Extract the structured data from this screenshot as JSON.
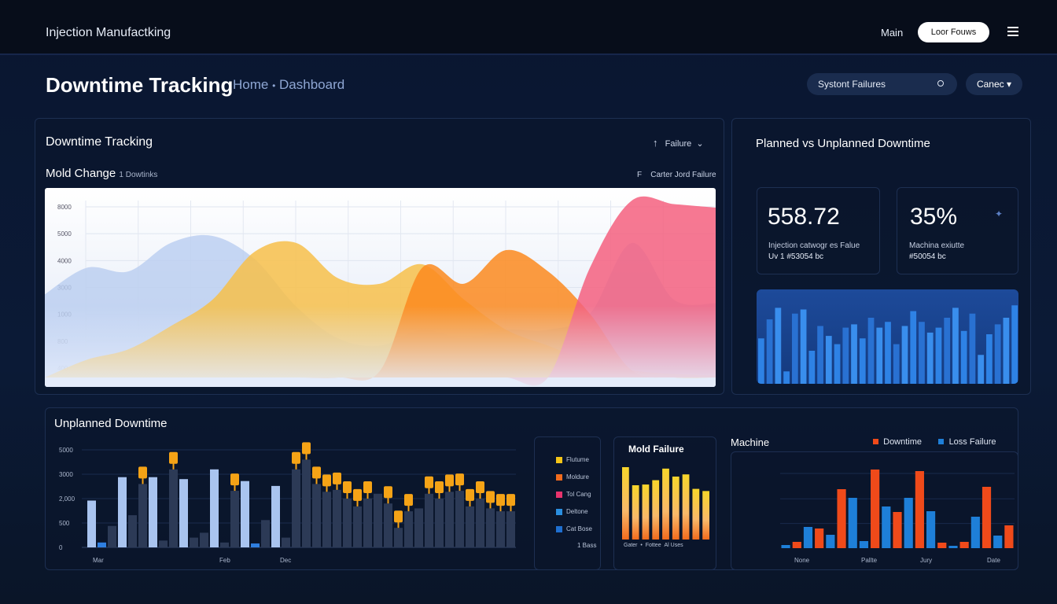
{
  "topbar": {
    "app_title": "Injection Manufactking",
    "main_link": "Main",
    "login_button": "Loor Fouws",
    "menu_icon": "hamburger-icon"
  },
  "header": {
    "page_title": "Downtime Tracking",
    "breadcrumb_home": "Home",
    "breadcrumb_sep": "•",
    "breadcrumb_current": "Dashboard",
    "search_value": "Systont Failures",
    "search_icon": "search-icon",
    "cancel_label": "Canec"
  },
  "tracking_panel": {
    "title": "Downtime Tracking",
    "sort_icon": "arrow-up-icon",
    "filter_label": "Failure",
    "subtitle": "Mold Change",
    "subtitle_note": "1 Dowtinks",
    "legend_marker": "F",
    "legend_label": "Carter Jord Failure"
  },
  "planned_panel": {
    "title": "Planned vs Unplanned Downtime",
    "kpis": [
      {
        "value": "558.72",
        "label": "Injection catwogr es Falue",
        "sub": "Uv 1 #53054 bc"
      },
      {
        "value": "35%",
        "label": "Machina exiutte",
        "sub": "#50054 bc",
        "icon": "sparkle-icon"
      }
    ],
    "bar_values": [
      55,
      78,
      92,
      15,
      85,
      90,
      40,
      70,
      58,
      48,
      68,
      72,
      55,
      80,
      68,
      75,
      48,
      70,
      88,
      75,
      62,
      68,
      80,
      92,
      64,
      85,
      35,
      60,
      72,
      80,
      95
    ]
  },
  "unplanned_panel": {
    "title": "Unplanned Downtime"
  },
  "legend_panel": {
    "items": [
      {
        "label": "Flutume",
        "color": "#f5c518"
      },
      {
        "label": "Moldure",
        "color": "#f26b1d"
      },
      {
        "label": "Tol Cang",
        "color": "#e8336d"
      },
      {
        "label": "Deltone",
        "color": "#2a8fe0"
      },
      {
        "label": "Cat Bose",
        "color": "#1f6fd0"
      }
    ],
    "footer": "1 Bass"
  },
  "mold_panel": {
    "title": "Mold Failure",
    "x_labels": [
      "Gater",
      "•",
      "Fottee",
      "Al Uses"
    ]
  },
  "machine_panel": {
    "title": "Machine",
    "legend": [
      {
        "label": "Downtime",
        "color": "#f04a1a"
      },
      {
        "label": "Loss Failure",
        "color": "#1e7fd8"
      }
    ]
  },
  "chart_data": [
    {
      "type": "area",
      "title": "Mold Change",
      "y_tick_labels": [
        "8000",
        "5000",
        "4000",
        "3000",
        "1000",
        "800",
        "400"
      ],
      "ylim": [
        0,
        100
      ],
      "grid": true,
      "series": [
        {
          "name": "blue",
          "color": "#b9cdf0",
          "values": [
            47,
            62,
            60,
            76,
            80,
            67,
            40,
            22,
            18,
            27,
            22,
            27,
            27,
            36,
            76,
            44,
            42
          ]
        },
        {
          "name": "yellow",
          "color": "#f7c04a",
          "values": [
            0,
            10,
            16,
            29,
            44,
            71,
            76,
            56,
            53,
            64,
            44,
            27,
            18,
            9,
            4,
            2,
            1
          ]
        },
        {
          "name": "orange",
          "color": "#fb8a1e",
          "values": [
            0,
            0,
            0,
            0,
            0,
            0,
            0,
            0,
            4,
            62,
            53,
            72,
            60,
            36,
            4,
            0,
            0
          ]
        },
        {
          "name": "pink",
          "color": "#f5607f",
          "values": [
            0,
            0,
            0,
            0,
            0,
            0,
            0,
            0,
            0,
            0,
            0,
            0,
            0,
            62,
            100,
            98,
            96
          ]
        }
      ]
    },
    {
      "type": "bar",
      "title": "Unplanned Downtime",
      "y_tick_labels": [
        "5000",
        "3000",
        "2,000",
        "500",
        "0"
      ],
      "x_tick_labels": [
        "Mar",
        "Feb",
        "Dec"
      ],
      "ylim": [
        0,
        100
      ],
      "bars": [
        [
          48,
          "light",
          0
        ],
        [
          5,
          "blue",
          0
        ],
        [
          22,
          "dark",
          0
        ],
        [
          72,
          "light",
          0
        ],
        [
          33,
          "dark",
          0
        ],
        [
          65,
          "dark",
          1
        ],
        [
          72,
          "light",
          0
        ],
        [
          7,
          "dark",
          0
        ],
        [
          80,
          "dark",
          1
        ],
        [
          70,
          "light",
          0
        ],
        [
          10,
          "dark",
          0
        ],
        [
          15,
          "dark",
          0
        ],
        [
          80,
          "light",
          0
        ],
        [
          5,
          "dark",
          0
        ],
        [
          58,
          "dark",
          1
        ],
        [
          68,
          "light",
          0
        ],
        [
          4,
          "blue",
          0
        ],
        [
          28,
          "dark",
          0
        ],
        [
          63,
          "light",
          0
        ],
        [
          10,
          "dark",
          0
        ],
        [
          80,
          "dark",
          1
        ],
        [
          90,
          "dark",
          1
        ],
        [
          65,
          "dark",
          1
        ],
        [
          57,
          "dark",
          1
        ],
        [
          59,
          "dark",
          1
        ],
        [
          50,
          "dark",
          1
        ],
        [
          42,
          "dark",
          1
        ],
        [
          50,
          "dark",
          1
        ],
        [
          55,
          "dark",
          0
        ],
        [
          45,
          "dark",
          1
        ],
        [
          20,
          "dark",
          1
        ],
        [
          37,
          "dark",
          1
        ],
        [
          40,
          "dark",
          0
        ],
        [
          55,
          "dark",
          1
        ],
        [
          50,
          "dark",
          1
        ],
        [
          57,
          "dark",
          1
        ],
        [
          58,
          "dark",
          1
        ],
        [
          42,
          "dark",
          1
        ],
        [
          50,
          "dark",
          1
        ],
        [
          40,
          "dark",
          1
        ],
        [
          37,
          "dark",
          1
        ],
        [
          37,
          "dark",
          1
        ]
      ]
    },
    {
      "type": "bar",
      "title": "Mold Failure",
      "values": [
        100,
        75,
        76,
        82,
        98,
        87,
        90,
        70,
        67
      ],
      "ylim": [
        0,
        100
      ]
    },
    {
      "type": "bar",
      "title": "Machine",
      "x_tick_labels": [
        "None",
        "Pallte",
        "Jury",
        "Date"
      ],
      "ylim": [
        0,
        100
      ],
      "bars": [
        [
          "loss",
          4
        ],
        [
          "down",
          8
        ],
        [
          "loss",
          27
        ],
        [
          "down",
          25
        ],
        [
          "loss",
          17
        ],
        [
          "down",
          75
        ],
        [
          "loss",
          64
        ],
        [
          "loss",
          9
        ],
        [
          "down",
          100
        ],
        [
          "loss",
          53
        ],
        [
          "down",
          46
        ],
        [
          "loss",
          64
        ],
        [
          "down",
          98
        ],
        [
          "loss",
          47
        ],
        [
          "down",
          7
        ],
        [
          "loss",
          3
        ],
        [
          "down",
          8
        ],
        [
          "loss",
          40
        ],
        [
          "down",
          78
        ],
        [
          "loss",
          16
        ],
        [
          "down",
          29
        ]
      ]
    }
  ]
}
